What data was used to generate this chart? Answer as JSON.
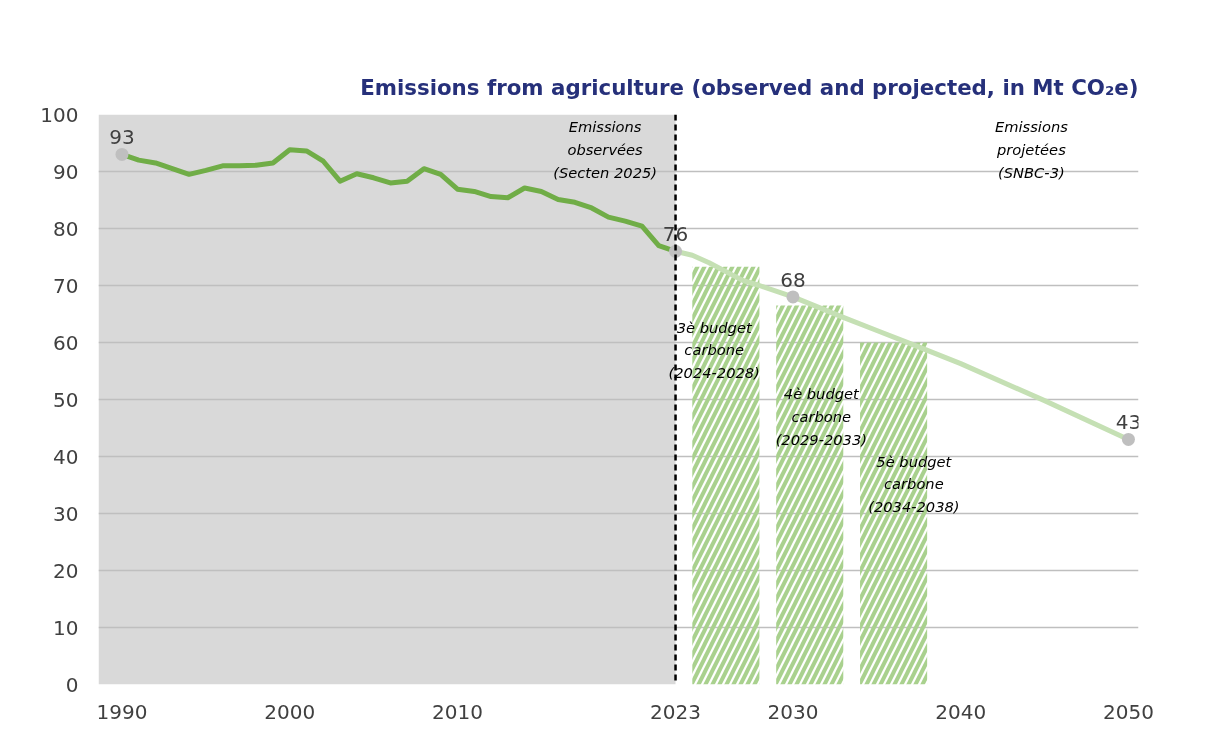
{
  "chart_data": {
    "type": "line",
    "title": "Emissions from agriculture (observed and projected, in Mt CO₂e)",
    "xlim": [
      1988.6,
      2050.6
    ],
    "xticks": [
      1990,
      2000,
      2010,
      2023,
      2030,
      2040,
      2050
    ],
    "ylim": [
      0,
      100
    ],
    "yticks": [
      0,
      10,
      20,
      30,
      40,
      50,
      60,
      70,
      80,
      90,
      100
    ],
    "grid": "y",
    "series": [
      {
        "type": "bar",
        "color": "#a9d18e",
        "x": [
          2026,
          2031,
          2036
        ],
        "values": [
          73.3,
          66.5,
          60
        ]
      },
      {
        "color": "#70ad47",
        "x": [
          1990,
          1991,
          1992,
          1993,
          1994,
          1995,
          1996,
          1997,
          1998,
          1999,
          2000,
          2001,
          2002,
          2003,
          2004,
          2005,
          2006,
          2007,
          2008,
          2009,
          2010,
          2011,
          2012,
          2013,
          2014,
          2015,
          2016,
          2017,
          2018,
          2019,
          2020,
          2021,
          2022,
          2023
        ],
        "values": [
          93,
          92.0,
          91.5,
          90.5,
          89.5,
          90.2,
          91.0,
          91.0,
          91.1,
          91.5,
          93.8,
          93.6,
          91.8,
          88.3,
          89.6,
          88.9,
          88.0,
          88.3,
          90.5,
          89.5,
          86.9,
          86.5,
          85.6,
          85.4,
          87.1,
          86.5,
          85.1,
          84.6,
          83.6,
          82.0,
          81.3,
          80.4,
          77.0,
          76
        ]
      },
      {
        "color": "#c5e0b4",
        "x": [
          2023,
          2024,
          2025,
          2027,
          2028,
          2030,
          2033,
          2035,
          2037,
          2040,
          2045,
          2050
        ],
        "values": [
          76,
          75.3,
          74,
          70.9,
          70,
          68,
          64.4,
          62.1,
          59.8,
          56.3,
          49.8,
          43
        ]
      },
      {
        "type": "scatter",
        "color": "#bfbfbf",
        "marker": "circle",
        "x": [
          1990,
          2023,
          2030,
          2050
        ],
        "values": [
          93,
          76,
          68,
          43
        ],
        "value_labels": [
          "93",
          "76",
          "68",
          "43"
        ]
      }
    ],
    "bands": [
      {
        "axis": "x",
        "from": 1988.6,
        "to": 2023,
        "color": "#d9d9d9"
      }
    ],
    "ref_lines": [
      {
        "axis": "x",
        "value": 2023,
        "color": "#000000",
        "line_style": "dashed"
      }
    ],
    "annotations": [
      {
        "text": "Emissions\nobservées\n(Secten 2025)",
        "x": 2018.8,
        "y": 99.3
      },
      "Emissions\nprojetées\n(SNBC-3)",
      "3è budget\ncarbone\n(2024-2028)",
      "4è budget\ncarbone\n(2029-2033)",
      "5è budget\ncarbone\n(2034-2038)"
    ]
  }
}
